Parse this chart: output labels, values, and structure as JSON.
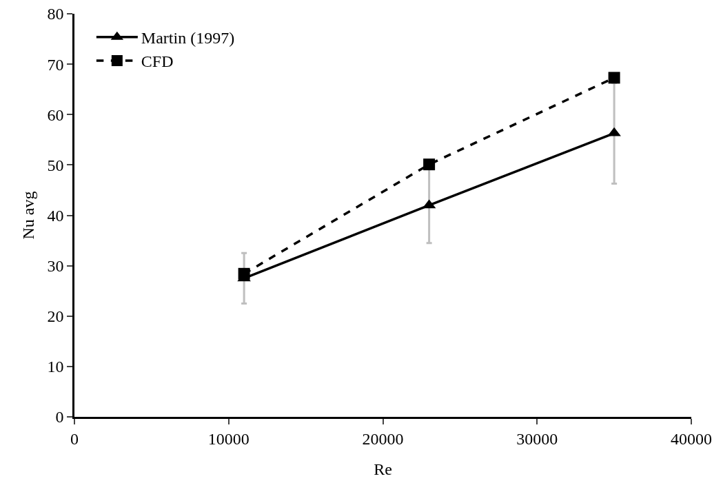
{
  "chart_data": {
    "type": "line",
    "xlabel": "Re",
    "ylabel": "Nu avg",
    "x": [
      11000,
      23000,
      35000
    ],
    "series": [
      {
        "name": "Martin (1997)",
        "color": "#000000",
        "values": [
          27.5,
          42,
          56.3
        ],
        "errors": [
          5,
          7.5,
          10
        ],
        "marker": "triangle",
        "line_style": "solid"
      },
      {
        "name": "CFD",
        "color": "#000000",
        "values": [
          28.4,
          50.1,
          67.3
        ],
        "marker": "square",
        "line_style": "dashed"
      }
    ],
    "xlim": [
      0,
      40000
    ],
    "xticks": [
      0,
      10000,
      20000,
      30000,
      40000
    ],
    "ylim": [
      0,
      80
    ],
    "yticks": [
      0,
      10,
      20,
      30,
      40,
      50,
      60,
      70,
      80
    ],
    "grid": false,
    "legend": "top left"
  }
}
